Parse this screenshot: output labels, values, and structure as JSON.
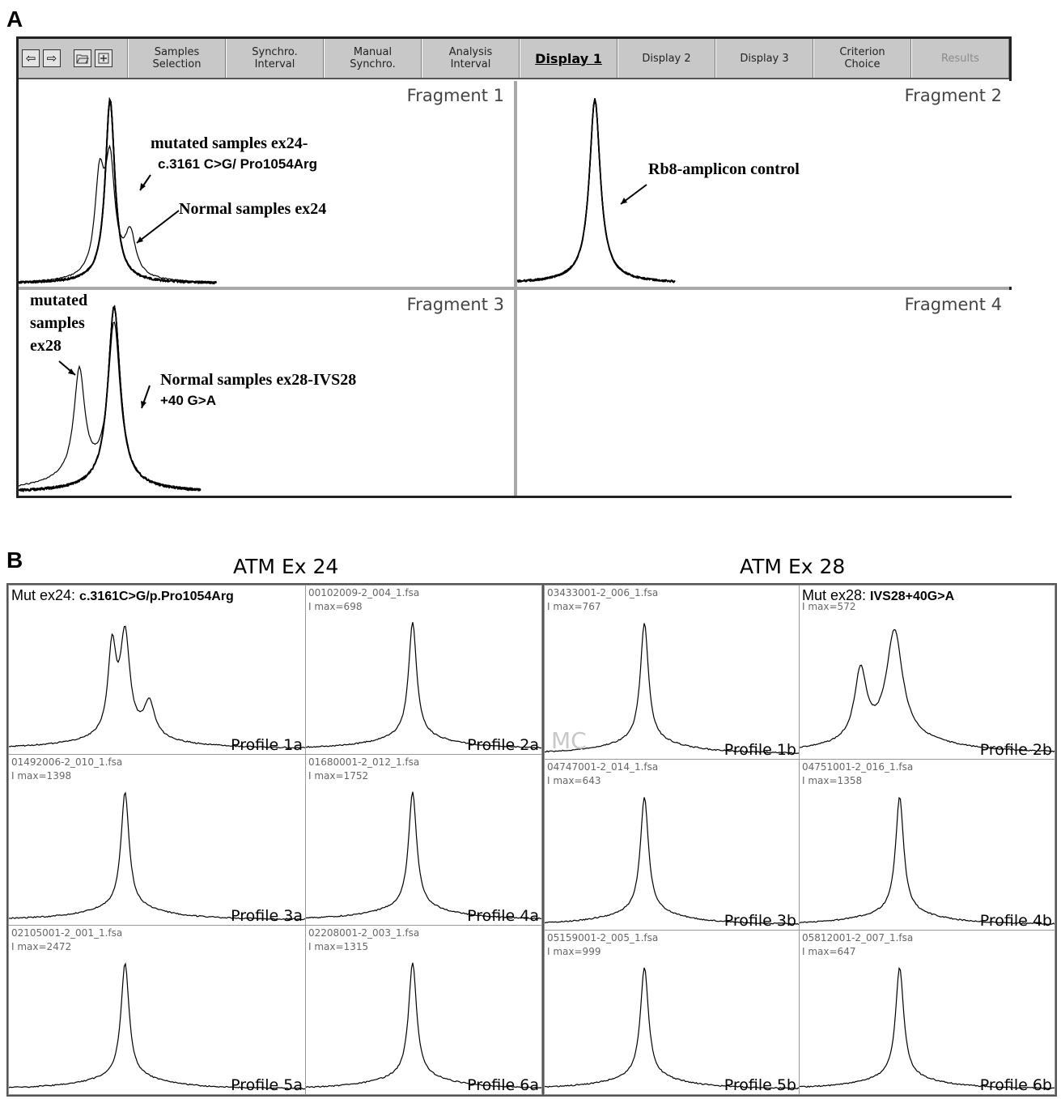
{
  "panel_a": {
    "letter": "A",
    "toolbar": {
      "nav_back_icon": "arrow-left-icon",
      "nav_forward_icon": "arrow-right-icon",
      "open_icon": "folder-open-icon",
      "add_icon": "add-file-icon",
      "buttons": [
        {
          "label": "Samples\nSelection",
          "state": "normal"
        },
        {
          "label": "Synchro.\nInterval",
          "state": "normal"
        },
        {
          "label": "Manual\nSynchro.",
          "state": "normal"
        },
        {
          "label": "Analysis\nInterval",
          "state": "normal"
        },
        {
          "label": "Display 1",
          "state": "active"
        },
        {
          "label": "Display 2",
          "state": "normal"
        },
        {
          "label": "Display 3",
          "state": "normal"
        },
        {
          "label": "Criterion\nChoice",
          "state": "normal"
        },
        {
          "label": "Results",
          "state": "disabled"
        }
      ]
    },
    "fragments": [
      {
        "title": "Fragment 1",
        "annotations": [
          "mutated samples ex24-",
          "c.3161 C>G/ Pro1054Arg",
          "Normal samples ex24"
        ]
      },
      {
        "title": "Fragment 2",
        "annotations": [
          "Rb8-amplicon control"
        ]
      },
      {
        "title": "Fragment 3",
        "annotations": [
          "mutated",
          "samples",
          "ex28",
          "Normal samples ex28-IVS28",
          "+40 G>A"
        ]
      },
      {
        "title": "Fragment 4",
        "annotations": []
      }
    ]
  },
  "panel_b": {
    "letter": "B",
    "groups": [
      {
        "title": "ATM Ex 24",
        "cells": [
          {
            "mut_label": "Mut ex24: ",
            "mut_detail": "c.3161C>G/p.Pro1054Arg",
            "profile": "Profile 1a"
          },
          {
            "file": "00102009-2_004_1.fsa",
            "imax": "I max=698",
            "profile": "Profile 2a"
          },
          {
            "file": "01492006-2_010_1.fsa",
            "imax": "I max=1398",
            "profile": "Profile 3a"
          },
          {
            "file": "01680001-2_012_1.fsa",
            "imax": "I max=1752",
            "profile": "Profile 4a"
          },
          {
            "file": "02105001-2_001_1.fsa",
            "imax": "I max=2472",
            "profile": "Profile 5a"
          },
          {
            "file": "02208001-2_003_1.fsa",
            "imax": "I max=1315",
            "profile": "Profile 6a"
          }
        ]
      },
      {
        "title": "ATM Ex 28",
        "cells": [
          {
            "file": "03433001-2_006_1.fsa",
            "imax": "I max=767",
            "profile": "Profile 1b",
            "watermark": "MC"
          },
          {
            "mut_label": "Mut ex28: ",
            "mut_detail": "IVS28+40G>A",
            "imax": "I max=572",
            "profile": "Profile 2b"
          },
          {
            "file": "04747001-2_014_1.fsa",
            "imax": "I max=643",
            "profile": "Profile 3b"
          },
          {
            "file": "04751001-2_016_1.fsa",
            "imax": "I max=1358",
            "profile": "Profile 4b"
          },
          {
            "file": "05159001-2_005_1.fsa",
            "imax": "I max=999",
            "profile": "Profile 5b"
          },
          {
            "file": "05812001-2_007_1.fsa",
            "imax": "I max=647",
            "profile": "Profile 6b"
          }
        ]
      }
    ]
  }
}
